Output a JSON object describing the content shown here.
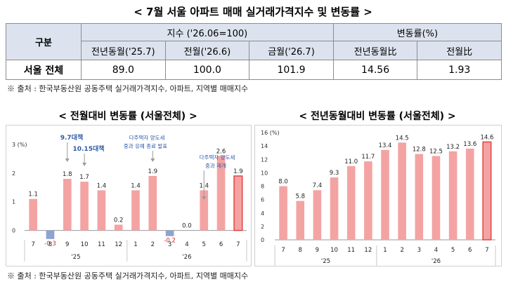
{
  "title": "< 7월 서울 아파트 매매 실거래가격지수 및 변동률 >",
  "table": {
    "group_header": "구분",
    "index_header": "지수 ('26.06=100)",
    "change_header": "변동률(%)",
    "subheaders": [
      "전년동월('25.7)",
      "전월('26.6)",
      "금월('26.7)",
      "전년동월比",
      "전월比"
    ],
    "row_label": "서울 전체",
    "values": [
      "89.0",
      "100.0",
      "101.9",
      "14.56",
      "1.93"
    ]
  },
  "source_note_top": "※ 출처 : 한국부동산원 공동주택 실거래가격지수, 아파트, 지역별 매매지수",
  "source_note_bottom": "※ 출처 : 한국부동산원 공동주택 실거래가격지수, 아파트, 지역별 매매지수",
  "colors": {
    "bar": "#f4a3a3",
    "bar_highlight": "#f4a3a3",
    "highlight_border": "#e23a3a",
    "annotation": "#2f5aa8",
    "negative_label": "#d42a2a",
    "header_bg": "#dde3ee"
  },
  "chart_data": [
    {
      "type": "bar",
      "title": "< 전월대비 변동률 (서울전체) >",
      "ylabel": "(%)",
      "ylim": [
        -0.5,
        3
      ],
      "yticks": [
        3,
        2,
        1,
        0
      ],
      "categories": [
        "7",
        "8",
        "9",
        "10",
        "11",
        "12",
        "1",
        "2",
        "3",
        "4",
        "5",
        "6",
        "7"
      ],
      "values": [
        1.1,
        -0.3,
        1.8,
        1.7,
        1.4,
        0.2,
        1.4,
        1.9,
        -0.2,
        0.0,
        1.4,
        2.6,
        1.9
      ],
      "labels": [
        "1.1",
        "-0.3",
        "1.8",
        "1.7",
        "1.4",
        "0.2",
        "1.4",
        "1.9",
        "-0.2",
        "0.0",
        "1.4",
        "2.6",
        "1.9"
      ],
      "year_labels": [
        "'25",
        "'26"
      ],
      "annotations": [
        {
          "text": "9.7대책",
          "index": 2,
          "bold": true
        },
        {
          "text": "10.15대책",
          "index": 3,
          "bold": true
        },
        {
          "text": "다주택자 양도세",
          "index": 7
        },
        {
          "text": "중과 유예 종료 발표",
          "index": 7
        },
        {
          "text": "다주택자 양도세",
          "index": 10
        },
        {
          "text": "중과 재개",
          "index": 10
        }
      ],
      "highlight_index": 12
    },
    {
      "type": "bar",
      "title": "< 전년동월대비 변동률 (서울전체) >",
      "ylabel": "(%)",
      "ylim": [
        0,
        16
      ],
      "yticks": [
        16,
        14,
        12,
        10,
        8,
        6,
        4,
        2,
        0
      ],
      "categories": [
        "7",
        "8",
        "9",
        "10",
        "11",
        "12",
        "1",
        "2",
        "3",
        "4",
        "5",
        "6",
        "7"
      ],
      "values": [
        8.0,
        5.8,
        7.4,
        9.3,
        11.0,
        11.7,
        13.4,
        14.5,
        12.8,
        12.5,
        13.2,
        13.6,
        14.6
      ],
      "labels": [
        "8.0",
        "5.8",
        "7.4",
        "9.3",
        "11.0",
        "11.7",
        "13.4",
        "14.5",
        "12.8",
        "12.5",
        "13.2",
        "13.6",
        "14.6"
      ],
      "year_labels": [
        "'25",
        "'26"
      ],
      "highlight_index": 12
    }
  ]
}
